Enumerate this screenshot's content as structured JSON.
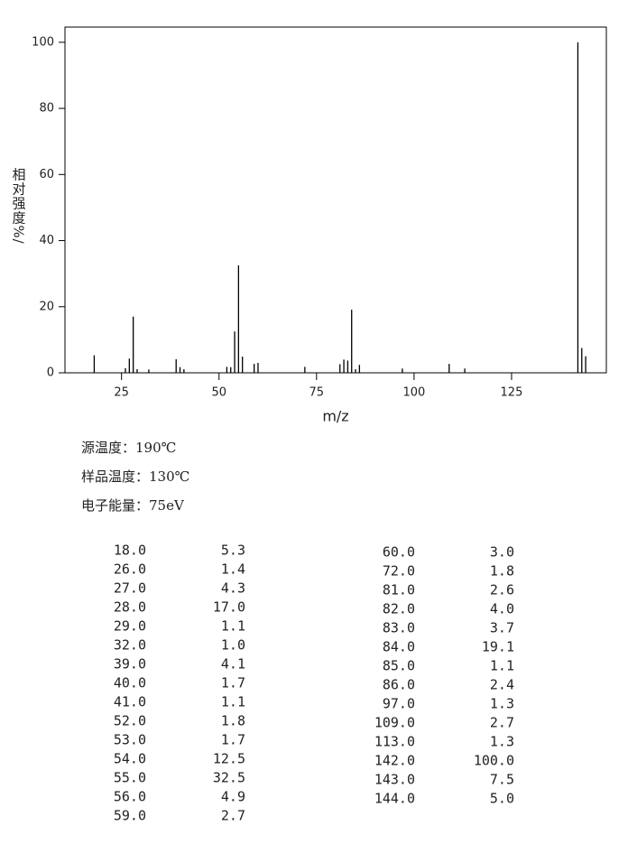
{
  "chart_data": {
    "type": "stem",
    "x_label": "m/z",
    "y_label": "相对强度%/",
    "x": [
      18,
      26,
      27,
      28,
      29,
      32,
      39,
      40,
      41,
      52,
      53,
      54,
      55,
      56,
      59,
      60,
      72,
      81,
      82,
      83,
      84,
      85,
      86,
      97,
      109,
      113,
      142,
      143,
      144
    ],
    "values": [
      5.3,
      1.4,
      4.3,
      17.0,
      1.1,
      1.0,
      4.1,
      1.7,
      1.1,
      1.8,
      1.7,
      12.5,
      32.5,
      4.9,
      2.7,
      3.0,
      1.8,
      2.6,
      4.0,
      3.7,
      19.1,
      1.1,
      2.4,
      1.3,
      2.7,
      1.3,
      100.0,
      7.5,
      5.0
    ],
    "color": "#000000",
    "xlim": [
      10.5,
      149.3
    ],
    "xticks": [
      25,
      50,
      75,
      100,
      125
    ],
    "ylim": [
      0,
      104.6
    ],
    "yticks": [
      0,
      20,
      40,
      60,
      80,
      100
    ]
  },
  "conditions": [
    "源温度：190℃",
    "样品温度：130℃",
    "电子能量：75eV"
  ],
  "peak_table": {
    "left": [
      [
        "18.0",
        "5.3"
      ],
      [
        "26.0",
        "1.4"
      ],
      [
        "27.0",
        "4.3"
      ],
      [
        "28.0",
        "17.0"
      ],
      [
        "29.0",
        "1.1"
      ],
      [
        "32.0",
        "1.0"
      ],
      [
        "39.0",
        "4.1"
      ],
      [
        "40.0",
        "1.7"
      ],
      [
        "41.0",
        "1.1"
      ],
      [
        "52.0",
        "1.8"
      ],
      [
        "53.0",
        "1.7"
      ],
      [
        "54.0",
        "12.5"
      ],
      [
        "55.0",
        "32.5"
      ],
      [
        "56.0",
        "4.9"
      ],
      [
        "59.0",
        "2.7"
      ]
    ],
    "right": [
      [
        "60.0",
        "3.0"
      ],
      [
        "72.0",
        "1.8"
      ],
      [
        "81.0",
        "2.6"
      ],
      [
        "82.0",
        "4.0"
      ],
      [
        "83.0",
        "3.7"
      ],
      [
        "84.0",
        "19.1"
      ],
      [
        "85.0",
        "1.1"
      ],
      [
        "86.0",
        "2.4"
      ],
      [
        "97.0",
        "1.3"
      ],
      [
        "109.0",
        "2.7"
      ],
      [
        "113.0",
        "1.3"
      ],
      [
        "142.0",
        "100.0"
      ],
      [
        "143.0",
        "7.5"
      ],
      [
        "144.0",
        "5.0"
      ]
    ]
  }
}
